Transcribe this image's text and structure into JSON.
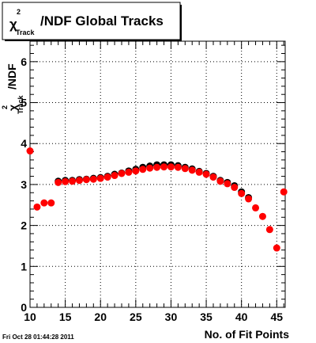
{
  "title": {
    "chi": "χ",
    "superscript": "2",
    "subscript": "Track",
    "rest": "/NDF  Global Tracks"
  },
  "ylabel": {
    "chi": "χ",
    "superscript": "2",
    "subscript": "Track",
    "rest": "/NDF"
  },
  "footer": "Fri Oct 28 01:44:28 2011",
  "chart_data": {
    "type": "scatter",
    "title": "χ²_Track/NDF  Global Tracks",
    "xlabel": "No. of Fit Points",
    "ylabel": "χ²_Track/NDF",
    "xlim": [
      10,
      46.2
    ],
    "ylim": [
      0,
      6.5
    ],
    "grid": true,
    "x_ticks": [
      10,
      15,
      20,
      25,
      30,
      35,
      40,
      45
    ],
    "y_ticks": [
      0,
      1,
      2,
      3,
      4,
      5,
      6
    ],
    "series": [
      {
        "color": "#000000",
        "x": [
          14,
          15,
          16,
          17,
          18,
          19,
          20,
          21,
          22,
          23,
          24,
          25,
          26,
          27,
          28,
          29,
          30,
          31,
          32,
          33,
          34,
          35,
          36,
          37,
          38,
          39,
          40,
          41
        ],
        "y": [
          3.08,
          3.1,
          3.1,
          3.12,
          3.13,
          3.15,
          3.17,
          3.2,
          3.25,
          3.28,
          3.33,
          3.37,
          3.42,
          3.45,
          3.48,
          3.48,
          3.48,
          3.46,
          3.42,
          3.38,
          3.32,
          3.27,
          3.2,
          3.1,
          3.05,
          2.97,
          2.82,
          2.68
        ]
      },
      {
        "color": "#ff0000",
        "x": [
          10,
          11,
          12,
          13,
          14,
          15,
          16,
          17,
          18,
          19,
          20,
          21,
          22,
          23,
          24,
          25,
          26,
          27,
          28,
          29,
          30,
          31,
          32,
          33,
          34,
          35,
          36,
          37,
          38,
          39,
          40,
          41,
          42,
          43,
          44,
          45,
          46
        ],
        "y": [
          3.82,
          2.45,
          2.55,
          2.55,
          3.05,
          3.07,
          3.08,
          3.1,
          3.12,
          3.13,
          3.15,
          3.18,
          3.22,
          3.27,
          3.3,
          3.33,
          3.37,
          3.4,
          3.42,
          3.43,
          3.43,
          3.42,
          3.39,
          3.35,
          3.3,
          3.25,
          3.18,
          3.08,
          3.02,
          2.93,
          2.78,
          2.65,
          2.43,
          2.22,
          1.9,
          1.45,
          2.82
        ]
      }
    ]
  }
}
